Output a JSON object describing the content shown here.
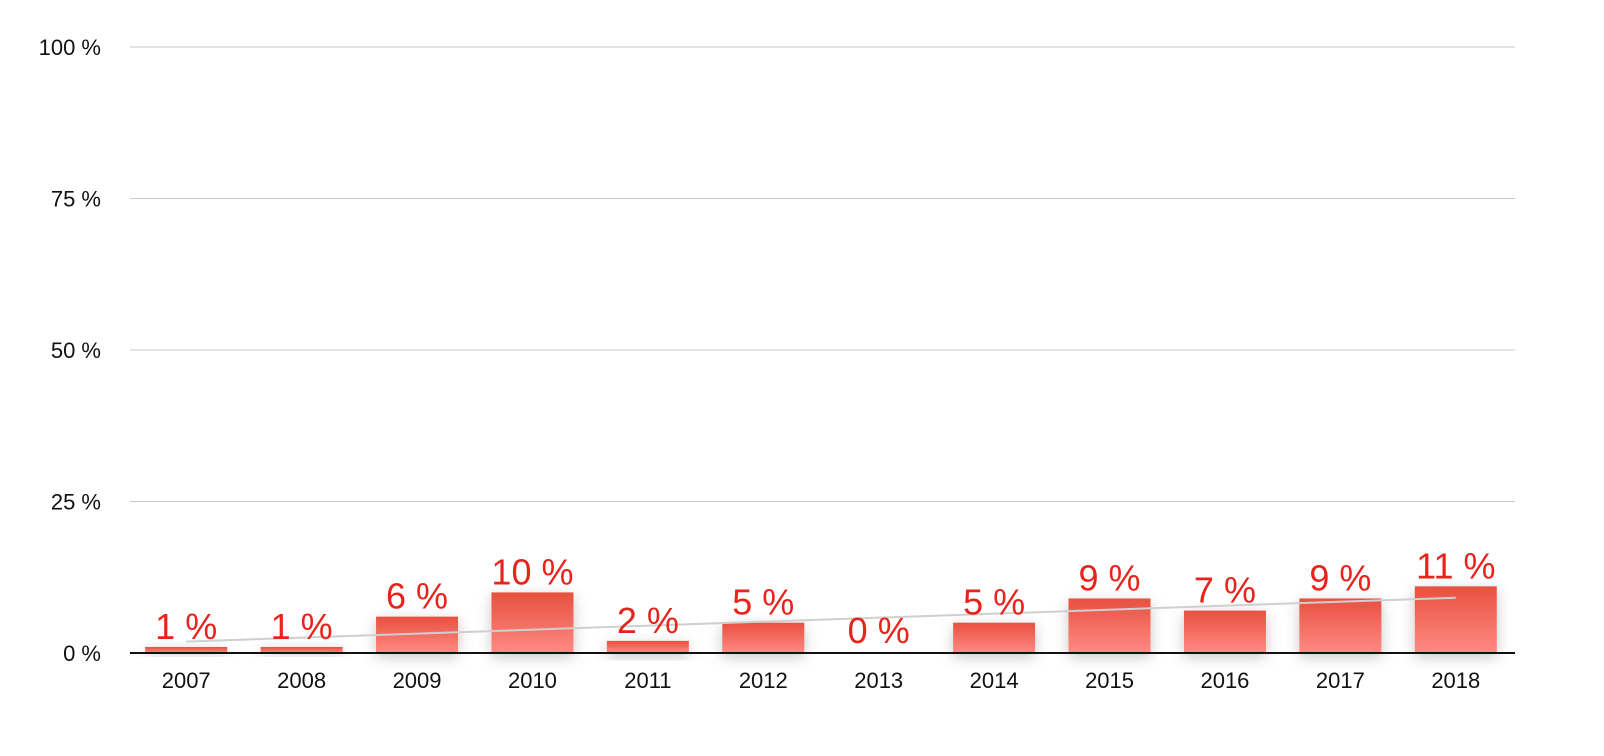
{
  "chart_data": {
    "type": "bar",
    "categories": [
      "2007",
      "2008",
      "2009",
      "2010",
      "2011",
      "2012",
      "2013",
      "2014",
      "2015",
      "2016",
      "2017",
      "2018"
    ],
    "series": [
      {
        "values": [
          1,
          1,
          6,
          10,
          2,
          5,
          0,
          5,
          9,
          7,
          9,
          11
        ],
        "labels": [
          "1 %",
          "1 %",
          "6 %",
          "10 %",
          "2 %",
          "5 %",
          "0 %",
          "5 %",
          "9 %",
          "7 %",
          "9 %",
          "11 %"
        ]
      }
    ],
    "yticks": [
      0,
      25,
      50,
      75,
      100
    ],
    "ytick_labels": [
      "0 %",
      "25 %",
      "50 %",
      "75 %",
      "100 %"
    ],
    "ylim": [
      0,
      100
    ],
    "grid": true,
    "trendline": true,
    "legend": "none",
    "colors": {
      "bar_top": "#e8503f",
      "bar_bottom": "#ff8a84",
      "label": "#e8231b",
      "grid": "#c8c8c8",
      "axis": "#111111",
      "trend": "#cfcfcf"
    }
  }
}
